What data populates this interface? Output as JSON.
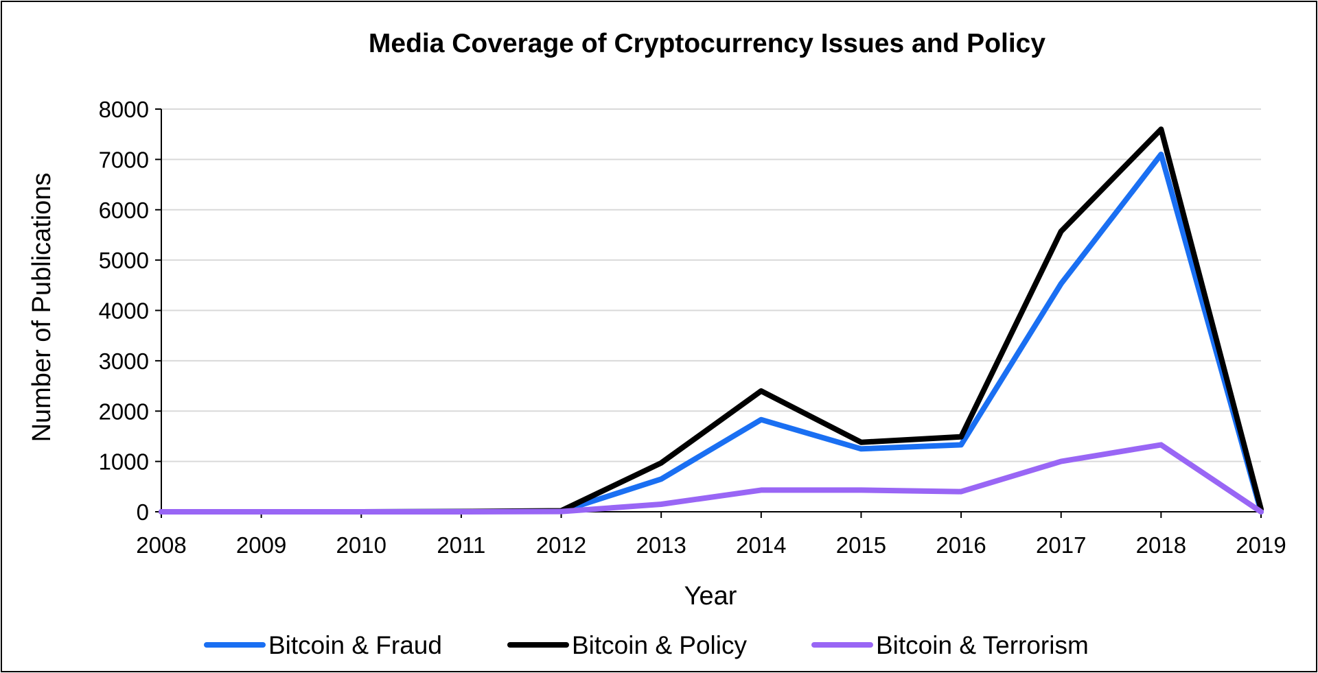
{
  "chart_data": {
    "type": "line",
    "title": "Media Coverage of Cryptocurrency Issues and Policy",
    "xlabel": "Year",
    "ylabel": "Number of Publications",
    "categories": [
      "2008",
      "2009",
      "2010",
      "2011",
      "2012",
      "2013",
      "2014",
      "2015",
      "2016",
      "2017",
      "2018",
      "2019"
    ],
    "ylim": [
      0,
      8000
    ],
    "yticks": [
      "0",
      "1000",
      "2000",
      "3000",
      "4000",
      "5000",
      "6000",
      "7000",
      "8000"
    ],
    "grid": true,
    "legend_position": "bottom",
    "series": [
      {
        "name": "Bitcoin & Fraud",
        "color": "#1a6ff2",
        "values": [
          0,
          0,
          0,
          5,
          10,
          650,
          1830,
          1250,
          1330,
          4530,
          7100,
          0
        ]
      },
      {
        "name": "Bitcoin & Policy",
        "color": "#000000",
        "values": [
          0,
          0,
          0,
          5,
          20,
          970,
          2400,
          1380,
          1490,
          5570,
          7600,
          50
        ]
      },
      {
        "name": "Bitcoin & Terrorism",
        "color": "#9966f5",
        "values": [
          0,
          0,
          0,
          0,
          5,
          150,
          430,
          430,
          400,
          1000,
          1330,
          0
        ]
      }
    ]
  }
}
